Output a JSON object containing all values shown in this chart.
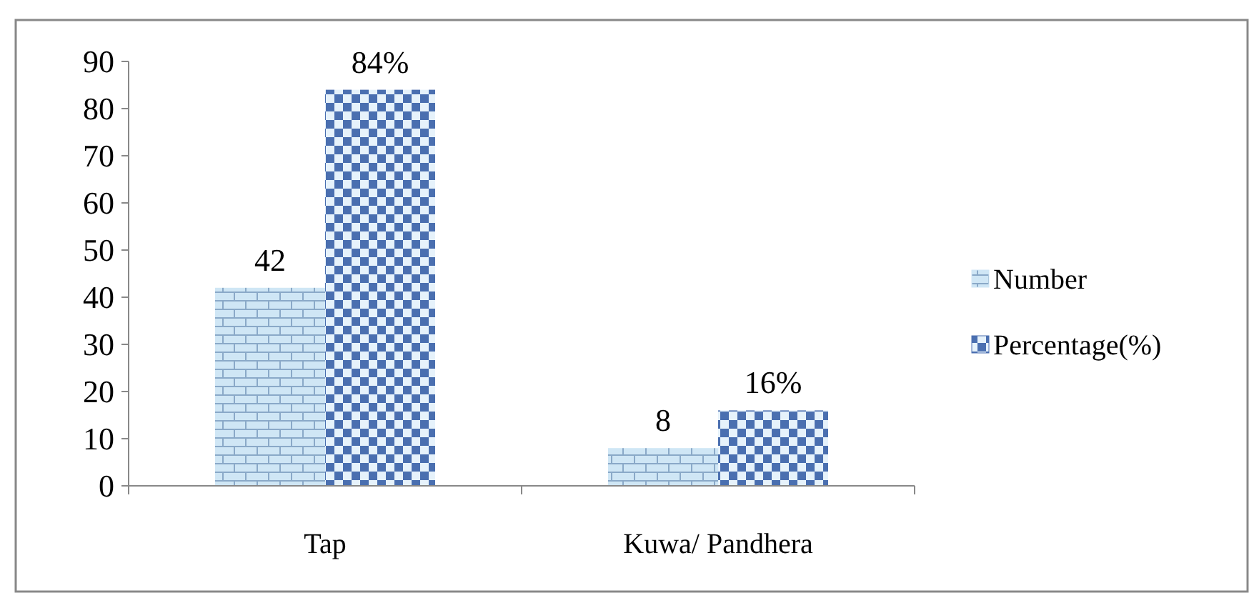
{
  "chart_data": {
    "type": "bar",
    "categories": [
      "Tap",
      "Kuwa/ Pandhera"
    ],
    "series": [
      {
        "name": "Number",
        "color": "#cfe6f5",
        "values": [
          42,
          8
        ],
        "value_labels": [
          "42",
          "8"
        ]
      },
      {
        "name": "Percentage(%)",
        "color": "#4a6fb0",
        "values": [
          84,
          16
        ],
        "value_labels": [
          "84%",
          "16%"
        ]
      }
    ],
    "ylim": [
      0,
      90
    ],
    "yticks": [
      0,
      10,
      20,
      30,
      40,
      50,
      60,
      70,
      80,
      90
    ],
    "grid": false,
    "legend": "right"
  }
}
